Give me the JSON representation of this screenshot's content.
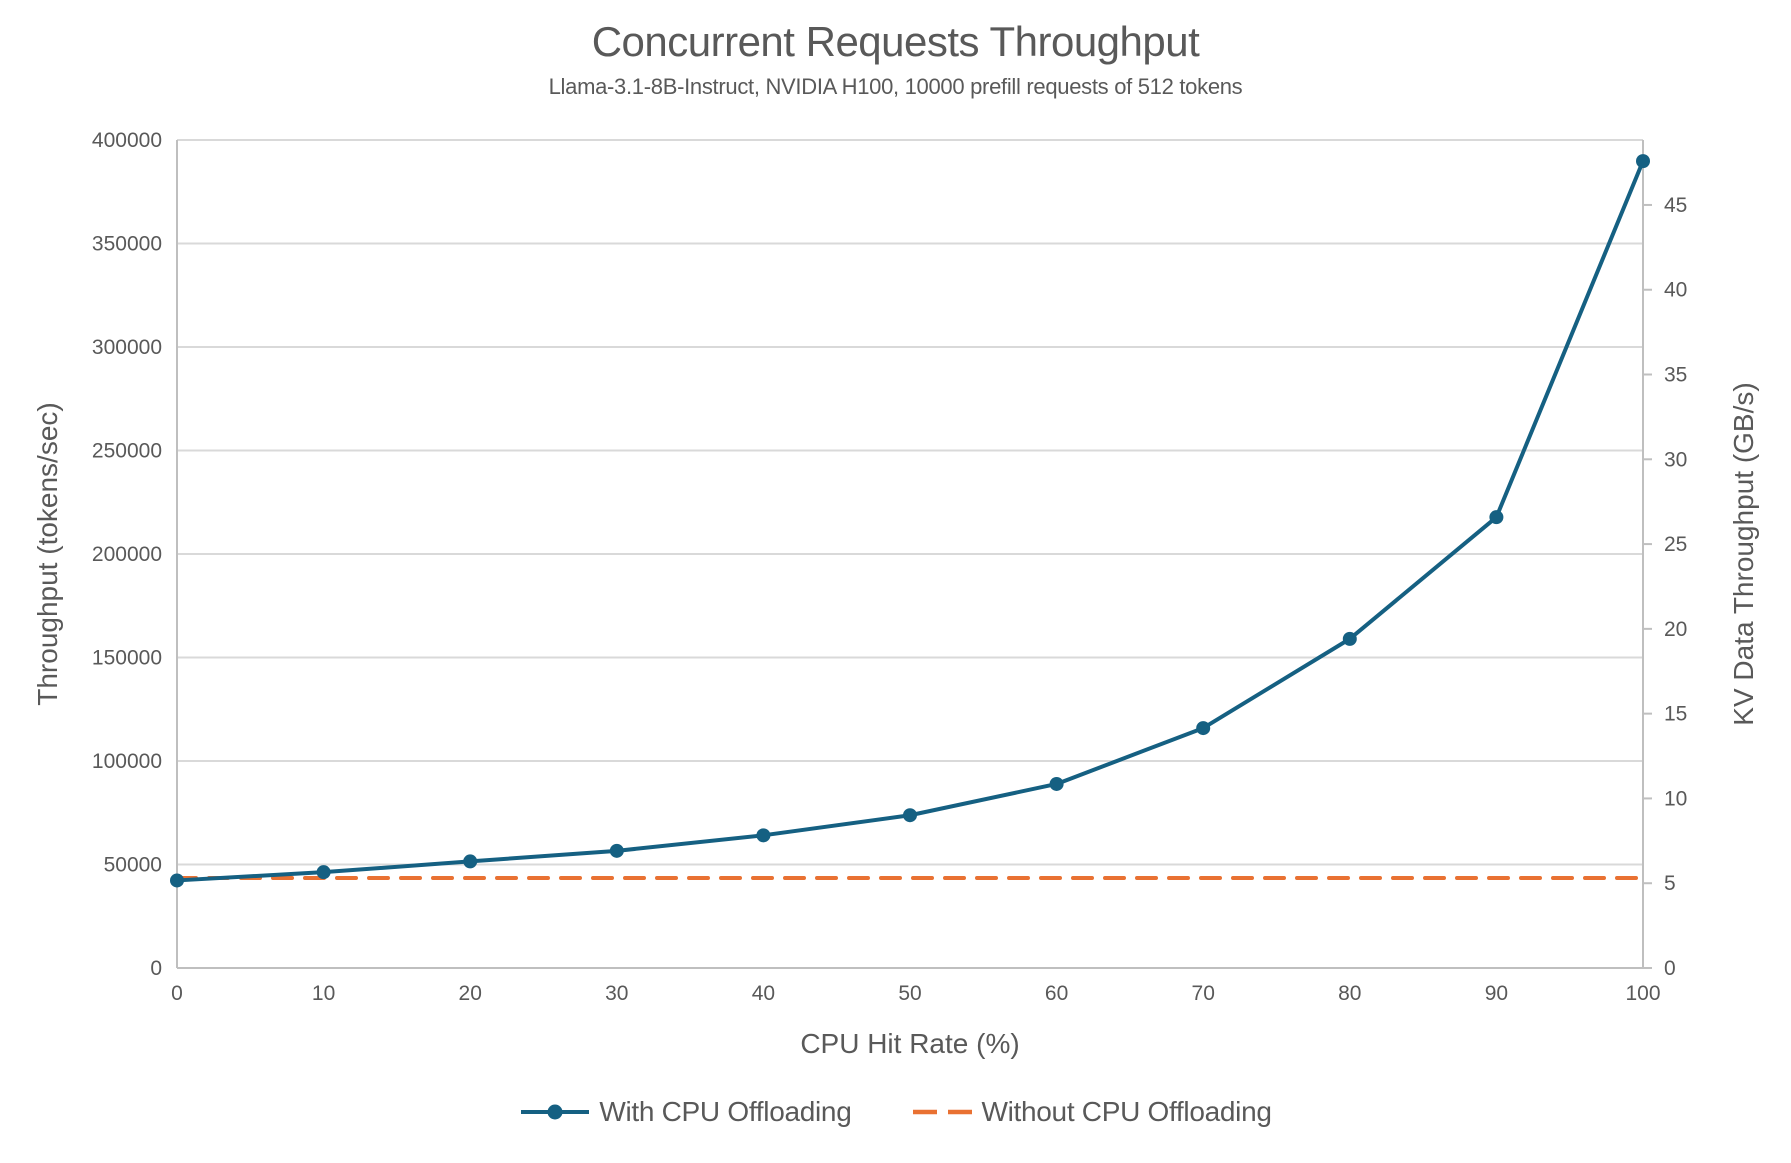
{
  "chart": {
    "title": "Concurrent Requests Throughput",
    "subtitle": "Llama-3.1-8B-Instruct, NVIDIA H100, 10000 prefill requests of 512 tokens"
  },
  "chart_data": {
    "type": "line",
    "title": "Concurrent Requests Throughput",
    "subtitle": "Llama-3.1-8B-Instruct, NVIDIA H100, 10000 prefill requests of 512 tokens",
    "x": [
      0,
      10,
      20,
      30,
      40,
      50,
      60,
      70,
      80,
      90,
      100
    ],
    "xlabel": "CPU Hit Rate (%)",
    "ylabel_left": "Throughput (tokens/sec)",
    "ylabel_right": "KV Data Throughput (GB/s)",
    "xlim": [
      0,
      100
    ],
    "ylim_left": [
      0,
      400000
    ],
    "ylim_right": [
      0,
      48.83
    ],
    "y_ticks_left": [
      0,
      50000,
      100000,
      150000,
      200000,
      250000,
      300000,
      350000,
      400000
    ],
    "y_ticks_right": [
      0,
      5,
      10,
      15,
      20,
      25,
      30,
      35,
      40,
      45
    ],
    "x_ticks": [
      0,
      10,
      20,
      30,
      40,
      50,
      60,
      70,
      80,
      90,
      100
    ],
    "grid": "horizontal",
    "legend_position": "bottom",
    "series": [
      {
        "name": "With CPU Offloading",
        "axis": "left",
        "color": "#156082",
        "style": "solid",
        "marker": "circle",
        "values": [
          42300,
          46300,
          51500,
          56600,
          64100,
          73800,
          88900,
          115900,
          159000,
          217800,
          389800
        ]
      },
      {
        "name": "Without CPU Offloading",
        "axis": "left",
        "color": "#E97132",
        "style": "dashed",
        "marker": "none",
        "values": [
          43500,
          43500,
          43500,
          43500,
          43500,
          43500,
          43500,
          43500,
          43500,
          43500,
          43500
        ]
      }
    ]
  },
  "colors": {
    "series_with_offloading": "#156082",
    "series_without_offloading": "#E97132",
    "gridline": "#D9D9D9",
    "axis_line": "#BFBFBF",
    "text": "#595959"
  }
}
